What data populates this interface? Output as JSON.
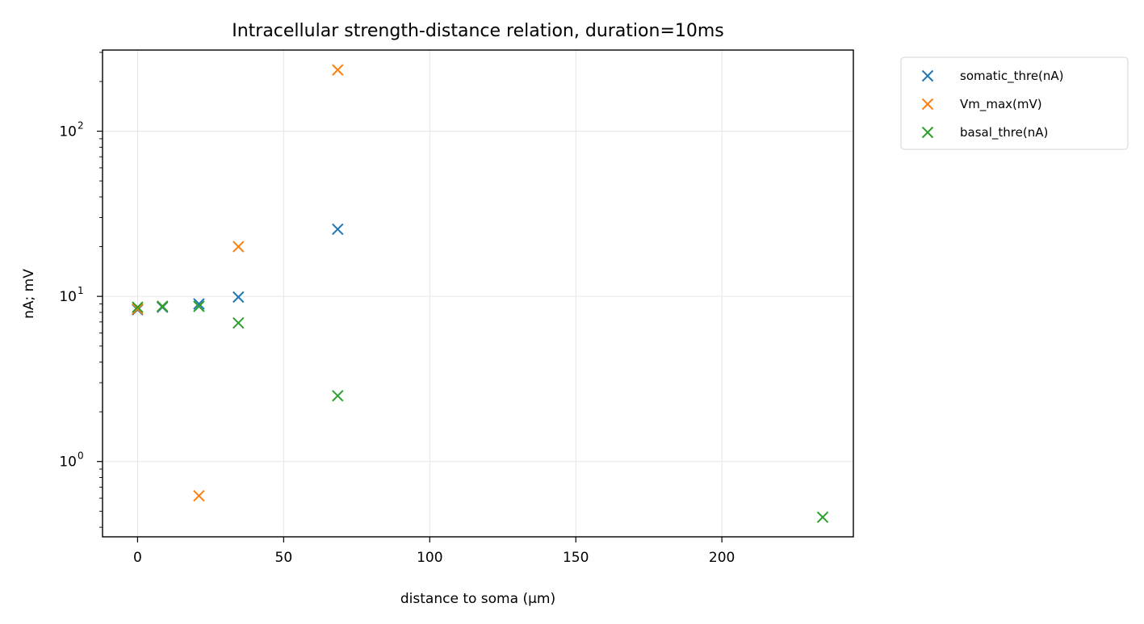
{
  "chart_data": {
    "type": "scatter",
    "title": "Intracellular strength-distance relation, duration=10ms",
    "xlabel": "distance to soma (µm)",
    "ylabel": "nA; mV",
    "xlim": [
      -12,
      245
    ],
    "ylim": [
      0.35,
      310
    ],
    "yscale": "log",
    "grid": true,
    "legend_position": "outside-top-right",
    "x_ticks": [
      {
        "value": 0,
        "label": "0"
      },
      {
        "value": 50,
        "label": "50"
      },
      {
        "value": 100,
        "label": "100"
      },
      {
        "value": 150,
        "label": "150"
      },
      {
        "value": 200,
        "label": "200"
      }
    ],
    "y_ticks": [
      {
        "value": 1,
        "label": "10",
        "exp": "0"
      },
      {
        "value": 10,
        "label": "10",
        "exp": "1"
      },
      {
        "value": 100,
        "label": "10",
        "exp": "2"
      }
    ],
    "series": [
      {
        "name": "somatic_thre(nA)",
        "color": "#1f77b4",
        "marker": "x",
        "x": [
          0,
          8.5,
          21,
          34.5,
          68.5
        ],
        "y": [
          8.3,
          8.6,
          9.0,
          9.9,
          25.5
        ]
      },
      {
        "name": "Vm_max(mV)",
        "color": "#ff7f0e",
        "marker": "x",
        "x": [
          0,
          8.5,
          21,
          34.5,
          68.5
        ],
        "y": [
          8.4,
          8.7,
          0.62,
          20.0,
          235
        ]
      },
      {
        "name": "basal_thre(nA)",
        "color": "#2ca02c",
        "marker": "x",
        "x": [
          0,
          8.5,
          21,
          34.5,
          68.5,
          234.5
        ],
        "y": [
          8.6,
          8.7,
          8.7,
          6.9,
          2.5,
          0.46
        ]
      }
    ]
  }
}
